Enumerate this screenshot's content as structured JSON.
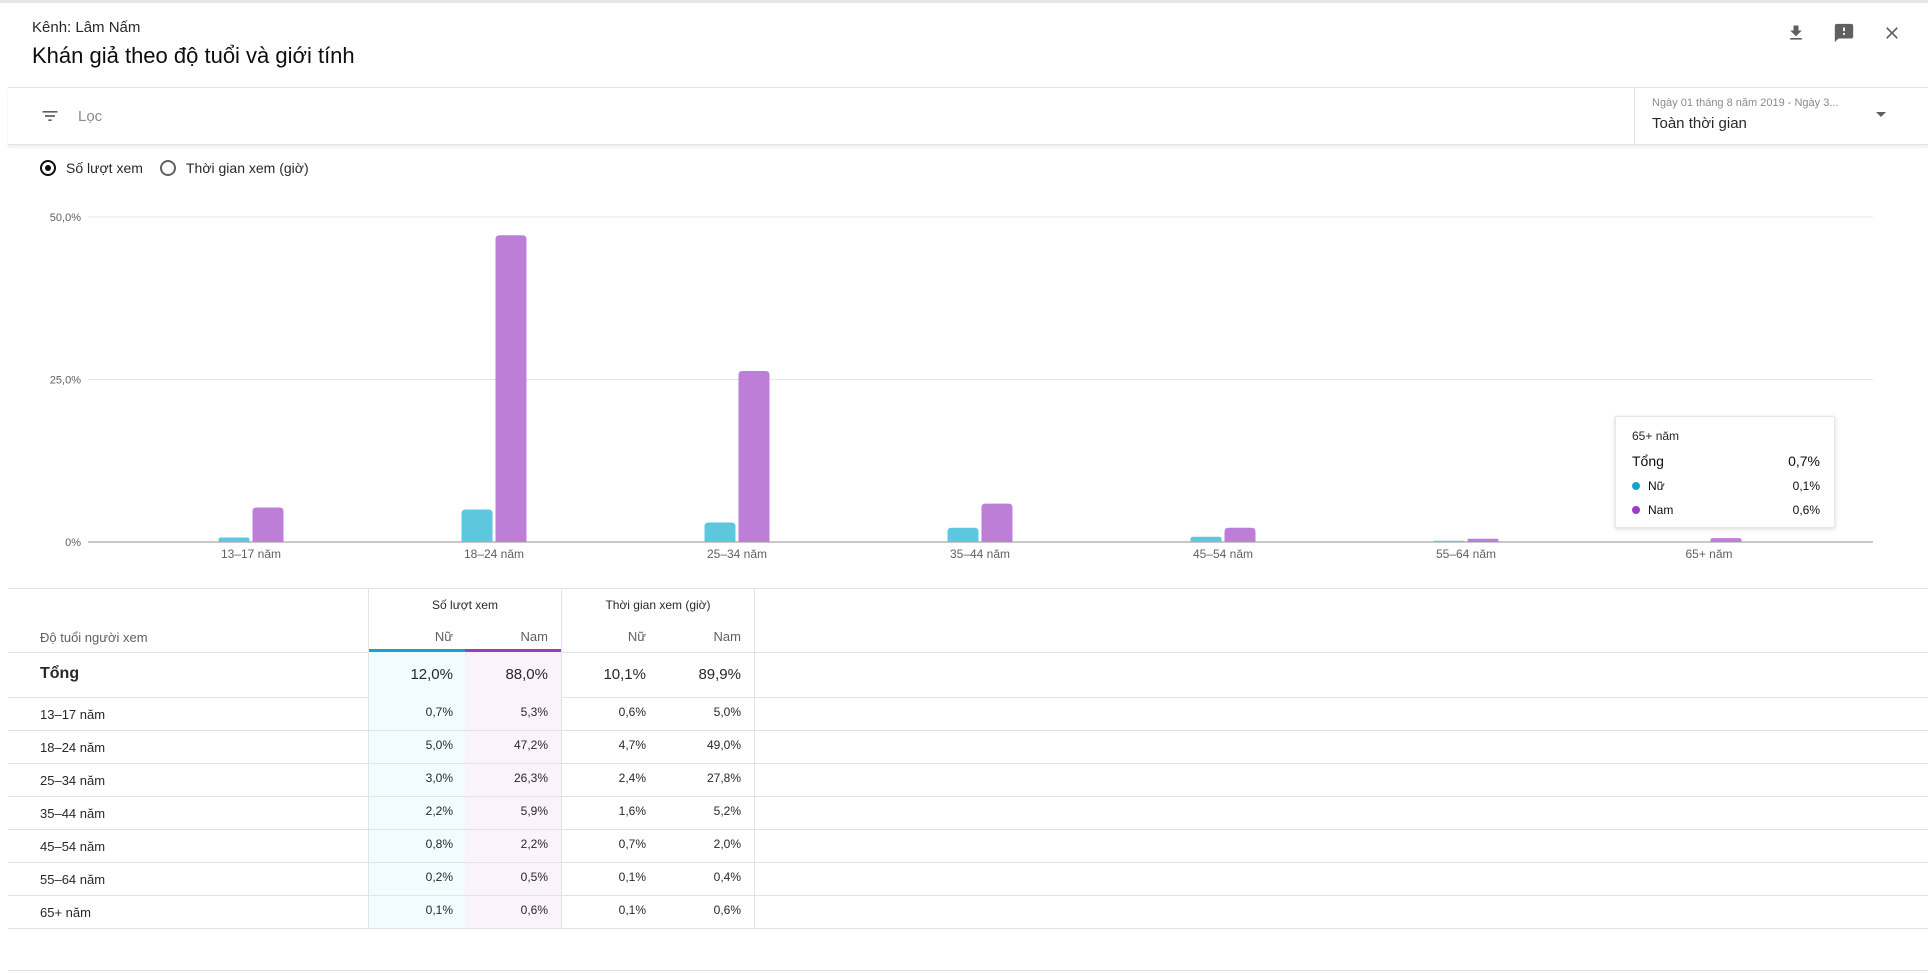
{
  "header": {
    "channel": "Kênh: Lâm Nấm",
    "title": "Khán giả theo độ tuổi và giới tính",
    "icons": [
      "download-icon",
      "feedback-icon",
      "close-icon"
    ]
  },
  "filter": {
    "placeholder": "Lọc"
  },
  "date_range": {
    "sub": "Ngày 01 tháng 8 năm 2019 - Ngày 3...",
    "main": "Toàn thời gian"
  },
  "metric_toggle": {
    "views_label": "Số lượt xem",
    "watch_label": "Thời gian xem (giờ)",
    "selected": "views"
  },
  "colors": {
    "female": "#5ec7e0",
    "male": "#bd7ed8",
    "male_header": "#9b3cc4",
    "female_header": "#15a6c7",
    "female_tint": "#f2fbfd",
    "male_tint": "#faf3fc"
  },
  "chart_data": {
    "type": "bar",
    "categories": [
      "13–17 năm",
      "18–24 năm",
      "25–34 năm",
      "35–44 năm",
      "45–54 năm",
      "55–64 năm",
      "65+ năm"
    ],
    "series": [
      {
        "name": "Nữ",
        "values": [
          0.7,
          5.0,
          3.0,
          2.2,
          0.8,
          0.2,
          0.1
        ]
      },
      {
        "name": "Nam",
        "values": [
          5.3,
          47.2,
          26.3,
          5.9,
          2.2,
          0.5,
          0.6
        ]
      }
    ],
    "y_ticks": [
      "0%",
      "25,0%",
      "50,0%"
    ],
    "ylim": [
      0,
      50
    ],
    "grid": true
  },
  "tooltip": {
    "title": "65+ năm",
    "total_label": "Tổng",
    "total_value": "0,7%",
    "female_label": "Nữ",
    "female_value": "0,1%",
    "male_label": "Nam",
    "male_value": "0,6%"
  },
  "table": {
    "row_header": "Độ tuổi người xem",
    "group_views": "Số lượt xem",
    "group_watch": "Thời gian xem (giờ)",
    "female_label": "Nữ",
    "male_label": "Nam",
    "total": {
      "label": "Tổng",
      "values": [
        "12,0%",
        "88,0%",
        "10,1%",
        "89,9%"
      ]
    },
    "rows": [
      {
        "label": "13–17 năm",
        "values": [
          "0,7%",
          "5,3%",
          "0,6%",
          "5,0%"
        ]
      },
      {
        "label": "18–24 năm",
        "values": [
          "5,0%",
          "47,2%",
          "4,7%",
          "49,0%"
        ]
      },
      {
        "label": "25–34 năm",
        "values": [
          "3,0%",
          "26,3%",
          "2,4%",
          "27,8%"
        ]
      },
      {
        "label": "35–44 năm",
        "values": [
          "2,2%",
          "5,9%",
          "1,6%",
          "5,2%"
        ]
      },
      {
        "label": "45–54 năm",
        "values": [
          "0,8%",
          "2,2%",
          "0,7%",
          "2,0%"
        ]
      },
      {
        "label": "55–64 năm",
        "values": [
          "0,2%",
          "0,5%",
          "0,1%",
          "0,4%"
        ]
      },
      {
        "label": "65+ năm",
        "values": [
          "0,1%",
          "0,6%",
          "0,1%",
          "0,6%"
        ]
      }
    ]
  }
}
